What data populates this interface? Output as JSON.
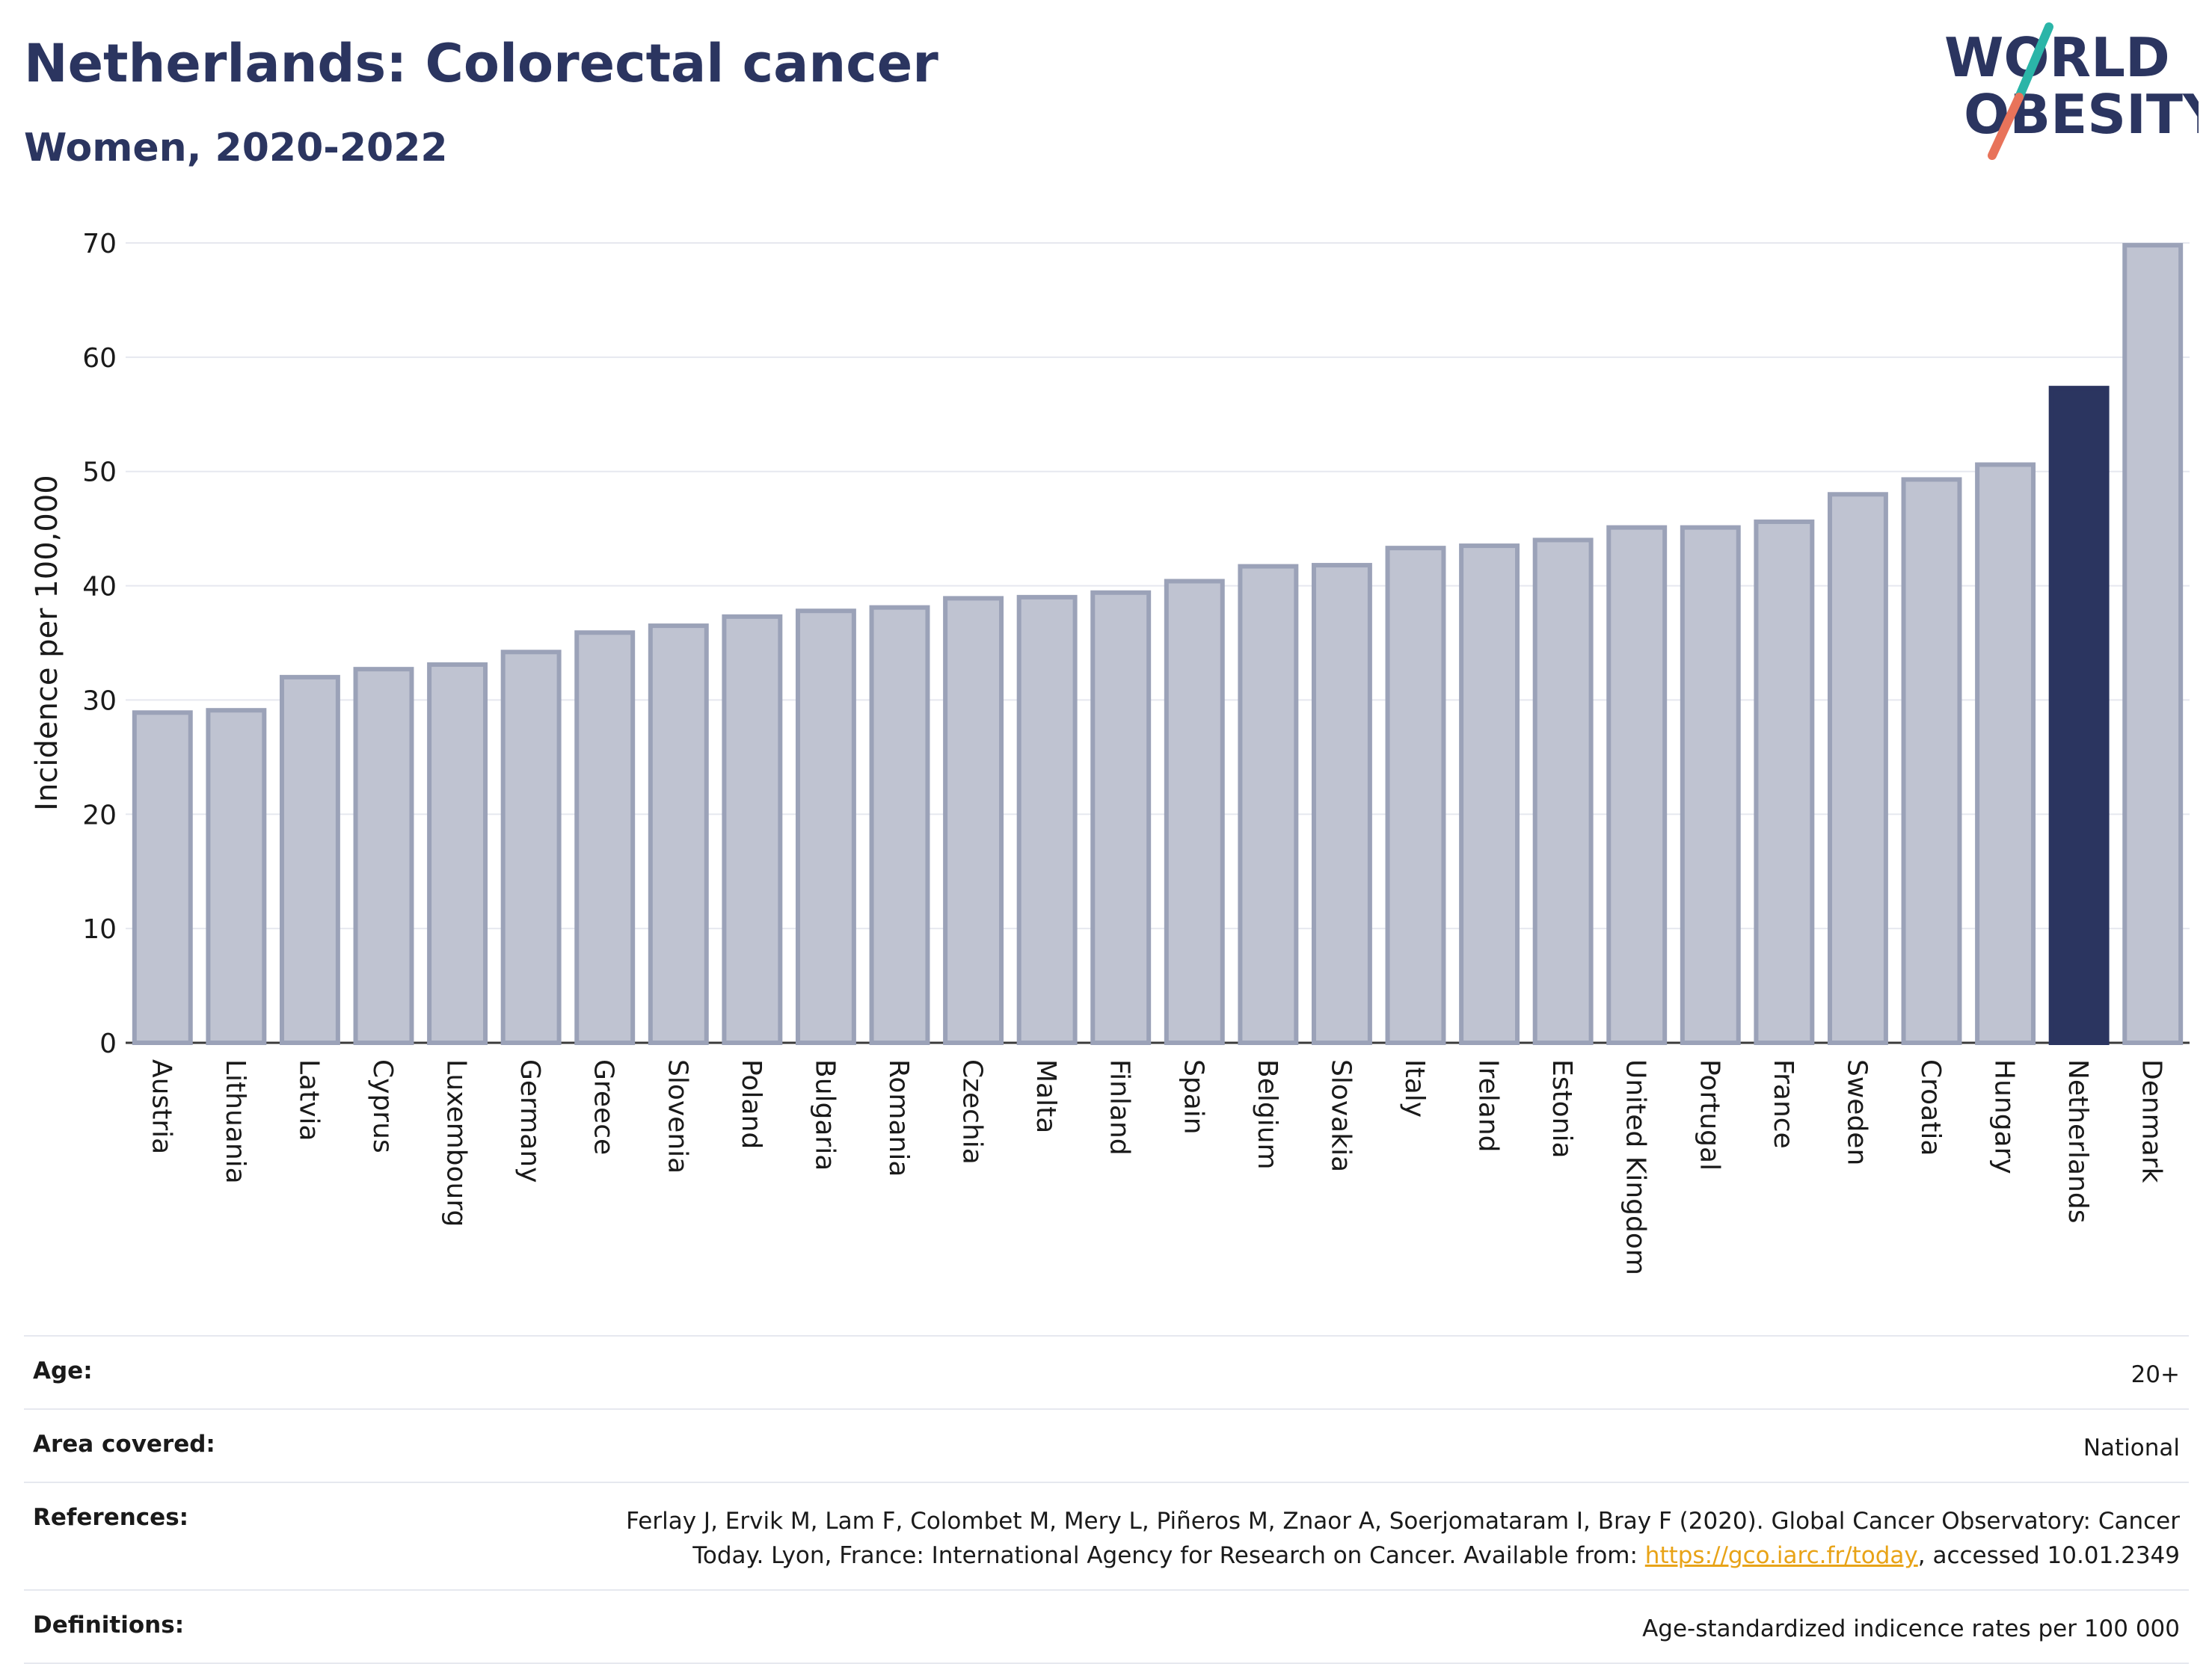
{
  "header": {
    "title": "Netherlands: Colorectal cancer",
    "subtitle": "Women, 2020-2022"
  },
  "logo": {
    "line1": "WORLD",
    "line2": "OBESITY",
    "colors": {
      "text": "#2b3560",
      "slash_top": "#2bb5a8",
      "slash_bottom": "#e8735a"
    }
  },
  "chart_data": {
    "type": "bar",
    "ylabel": "Incidence per 100,000",
    "ylim": [
      0,
      70
    ],
    "yticks": [
      0,
      10,
      20,
      30,
      40,
      50,
      60,
      70
    ],
    "grid": true,
    "highlight": "Netherlands",
    "colors": {
      "bar": "#bfc3d1",
      "bar_border": "#9ba2b8",
      "highlight": "#2b3560"
    },
    "categories": [
      "Austria",
      "Lithuania",
      "Latvia",
      "Cyprus",
      "Luxembourg",
      "Germany",
      "Greece",
      "Slovenia",
      "Poland",
      "Bulgaria",
      "Romania",
      "Czechia",
      "Malta",
      "Finland",
      "Spain",
      "Belgium",
      "Slovakia",
      "Italy",
      "Ireland",
      "Estonia",
      "United Kingdom",
      "Portugal",
      "France",
      "Sweden",
      "Croatia",
      "Hungary",
      "Netherlands",
      "Denmark"
    ],
    "values": [
      28.9,
      29.1,
      32.0,
      32.7,
      33.1,
      34.2,
      35.9,
      36.5,
      37.3,
      37.8,
      38.1,
      38.9,
      39.0,
      39.4,
      40.4,
      41.7,
      41.8,
      43.3,
      43.5,
      44.0,
      45.1,
      45.1,
      45.6,
      48.0,
      49.3,
      50.6,
      57.3,
      69.8
    ]
  },
  "meta": {
    "age_label": "Age:",
    "age_value": "20+",
    "area_label": "Area covered:",
    "area_value": "National",
    "references_label": "References:",
    "references_text": "Ferlay J, Ervik M, Lam F, Colombet M, Mery L, Piñeros M, Znaor A, Soerjomataram I, Bray F (2020). Global Cancer Observatory: Cancer Today. Lyon, France: International Agency for Research on Cancer. Available from: ",
    "references_link": "https://gco.iarc.fr/today",
    "references_tail": ", accessed 10.01.2349",
    "definitions_label": "Definitions:",
    "definitions_value": "Age-standardized indicence rates per 100 000"
  }
}
